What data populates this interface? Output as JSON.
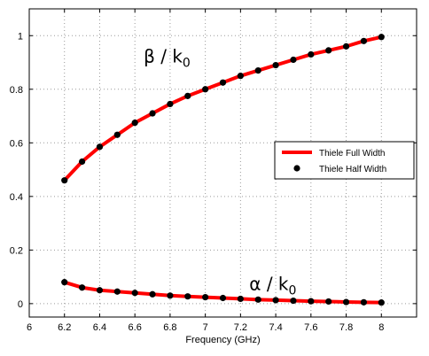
{
  "chart_data": {
    "type": "line",
    "xlabel": "Frequency (GHz)",
    "ylabel": "",
    "xlim": [
      6,
      8.2
    ],
    "ylim": [
      -0.05,
      1.1
    ],
    "xticks": [
      "6",
      "6.2",
      "6.4",
      "6.6",
      "6.8",
      "7",
      "7.2",
      "7.4",
      "7.6",
      "7.8",
      "8"
    ],
    "yticks": [
      "0",
      "0.2",
      "0.4",
      "0.6",
      "0.8",
      "1"
    ],
    "grid": true,
    "legend_position": "right",
    "annotations": [
      {
        "main": "β / k",
        "sub": "0",
        "x": 6.65,
        "y": 0.9
      },
      {
        "main": "α / k",
        "sub": "0",
        "x": 7.25,
        "y": 0.05
      }
    ],
    "series": [
      {
        "name": "Thiele Full Width",
        "style": "line",
        "color": "#ff0000",
        "curves": [
          {
            "x": [
              6.2,
              6.3,
              6.4,
              6.5,
              6.6,
              6.7,
              6.8,
              6.9,
              7.0,
              7.1,
              7.2,
              7.3,
              7.4,
              7.5,
              7.6,
              7.7,
              7.8,
              7.9,
              8.0
            ],
            "y": [
              0.46,
              0.53,
              0.585,
              0.63,
              0.675,
              0.71,
              0.745,
              0.775,
              0.8,
              0.825,
              0.85,
              0.87,
              0.89,
              0.91,
              0.93,
              0.945,
              0.96,
              0.98,
              0.995
            ]
          },
          {
            "x": [
              6.2,
              6.3,
              6.4,
              6.5,
              6.6,
              6.7,
              6.8,
              6.9,
              7.0,
              7.1,
              7.2,
              7.3,
              7.4,
              7.5,
              7.6,
              7.7,
              7.8,
              7.9,
              8.0
            ],
            "y": [
              0.08,
              0.06,
              0.05,
              0.045,
              0.04,
              0.035,
              0.03,
              0.027,
              0.024,
              0.021,
              0.018,
              0.015,
              0.013,
              0.011,
              0.009,
              0.008,
              0.006,
              0.005,
              0.004
            ]
          }
        ]
      },
      {
        "name": "Thiele Half Width",
        "style": "markers",
        "color": "#000000",
        "curves": [
          {
            "x": [
              6.2,
              6.3,
              6.4,
              6.5,
              6.6,
              6.7,
              6.8,
              6.9,
              7.0,
              7.1,
              7.2,
              7.3,
              7.4,
              7.5,
              7.6,
              7.7,
              7.8,
              7.9,
              8.0
            ],
            "y": [
              0.46,
              0.53,
              0.585,
              0.63,
              0.675,
              0.71,
              0.745,
              0.775,
              0.8,
              0.825,
              0.85,
              0.87,
              0.89,
              0.91,
              0.93,
              0.945,
              0.96,
              0.98,
              0.995
            ]
          },
          {
            "x": [
              6.2,
              6.3,
              6.4,
              6.5,
              6.6,
              6.7,
              6.8,
              6.9,
              7.0,
              7.1,
              7.2,
              7.3,
              7.4,
              7.5,
              7.6,
              7.7,
              7.8,
              7.9,
              8.0
            ],
            "y": [
              0.08,
              0.06,
              0.05,
              0.045,
              0.04,
              0.035,
              0.03,
              0.027,
              0.024,
              0.021,
              0.018,
              0.015,
              0.013,
              0.011,
              0.009,
              0.008,
              0.006,
              0.005,
              0.004
            ]
          }
        ]
      }
    ]
  }
}
